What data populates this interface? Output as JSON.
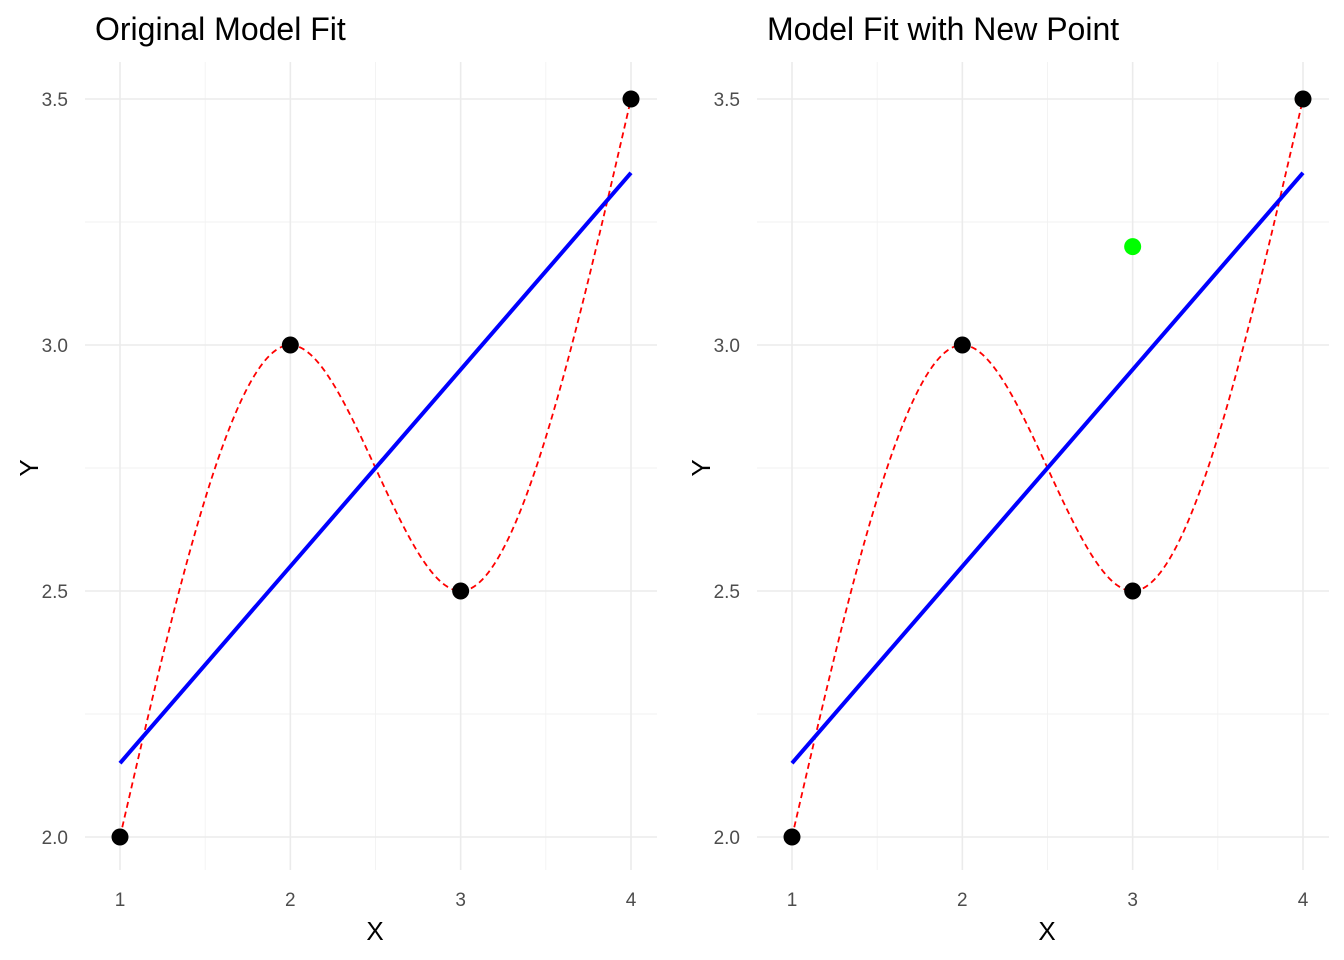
{
  "chart_data": [
    {
      "type": "line",
      "title": "Original Model Fit",
      "xlabel": "X",
      "ylabel": "Y",
      "xlim": [
        1,
        4
      ],
      "ylim": [
        2.0,
        3.5
      ],
      "x_ticks": [
        1,
        2,
        3,
        4
      ],
      "x_tick_labels": [
        "1",
        "2",
        "3",
        "4"
      ],
      "y_ticks": [
        2.0,
        2.5,
        3.0,
        3.5
      ],
      "y_tick_labels": [
        "2.0",
        "2.5",
        "3.0",
        "3.5"
      ],
      "grid": true,
      "legend": "none",
      "points": [
        {
          "x": 1,
          "y": 2.0
        },
        {
          "x": 2,
          "y": 3.0
        },
        {
          "x": 3,
          "y": 2.5
        },
        {
          "x": 4,
          "y": 3.5
        }
      ],
      "linear_fit": {
        "x": [
          1,
          4
        ],
        "y": [
          2.15,
          3.35
        ],
        "color": "#0000ff",
        "style": "solid"
      },
      "interpolating_curve": {
        "color": "#ff0000",
        "style": "dashed"
      },
      "extra_points": []
    },
    {
      "type": "line",
      "title": "Model Fit with New Point",
      "xlabel": "X",
      "ylabel": "Y",
      "xlim": [
        1,
        4
      ],
      "ylim": [
        2.0,
        3.5
      ],
      "x_ticks": [
        1,
        2,
        3,
        4
      ],
      "x_tick_labels": [
        "1",
        "2",
        "3",
        "4"
      ],
      "y_ticks": [
        2.0,
        2.5,
        3.0,
        3.5
      ],
      "y_tick_labels": [
        "2.0",
        "2.5",
        "3.0",
        "3.5"
      ],
      "grid": true,
      "legend": "none",
      "points": [
        {
          "x": 1,
          "y": 2.0
        },
        {
          "x": 2,
          "y": 3.0
        },
        {
          "x": 3,
          "y": 2.5
        },
        {
          "x": 4,
          "y": 3.5
        }
      ],
      "linear_fit": {
        "x": [
          1,
          4
        ],
        "y": [
          2.15,
          3.35
        ],
        "color": "#0000ff",
        "style": "solid"
      },
      "interpolating_curve": {
        "color": "#ff0000",
        "style": "dashed"
      },
      "extra_points": [
        {
          "x": 3,
          "y": 3.2,
          "color": "#00ff00"
        }
      ]
    }
  ],
  "colors": {
    "point": "#000000",
    "grid": "#ebebeb",
    "tick_text": "#4d4d4d"
  }
}
